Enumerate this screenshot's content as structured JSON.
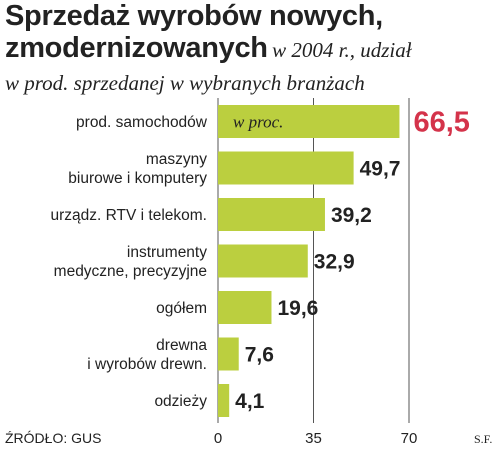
{
  "header": {
    "title_line1": "Sprzedaż wyrobów nowych,",
    "title_line2": "zmodernizowanych",
    "subtitle_part1": "w 2004 r., udział",
    "subtitle_part2": "w prod. sprzedanej w wybranych branżach"
  },
  "footer": {
    "source": "ŹRÓDŁO: GUS",
    "author": "S.F."
  },
  "chart_data": {
    "type": "bar",
    "orientation": "horizontal",
    "categories": [
      [
        "prod. samochodów"
      ],
      [
        "maszyny",
        "biurowe i komputery"
      ],
      [
        "urządz. RTV i telekom."
      ],
      [
        "instrumenty",
        "medyczne, precyzyjne"
      ],
      [
        "ogółem"
      ],
      [
        "drewna",
        "i wyrobów drewn."
      ],
      [
        "odzieży"
      ]
    ],
    "values": [
      66.5,
      49.7,
      39.2,
      32.9,
      19.6,
      7.6,
      4.1
    ],
    "value_labels": [
      "66,5",
      "49,7",
      "39,2",
      "32,9",
      "19,6",
      "7,6",
      "4,1"
    ],
    "highlight_index": 0,
    "unit_label": "w proc.",
    "xlim": [
      0,
      70
    ],
    "x_ticks": [
      0,
      35,
      70
    ],
    "x_tick_labels": [
      "0",
      "35",
      "70"
    ],
    "grid": "vertical lines at ticks",
    "colors": {
      "bar": "#bbcf3f",
      "highlight_value": "#d4334a",
      "gridline": "#555555"
    }
  }
}
